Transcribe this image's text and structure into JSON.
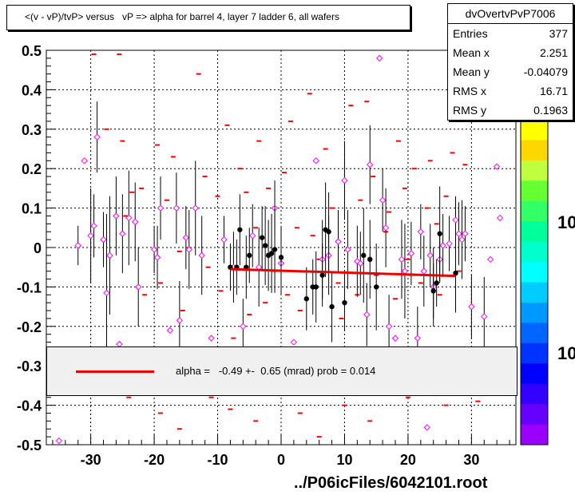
{
  "title": "<(v - vP)/tvP> versus   vP => alpha for barrel 4, layer 7 ladder 6, all wafers",
  "stats": {
    "name": "dvOvertvPvP7006",
    "rows": [
      {
        "label": "Entries",
        "value": "377"
      },
      {
        "label": "Mean x",
        "value": "2.251"
      },
      {
        "label": "Mean y",
        "value": "-0.04079"
      },
      {
        "label": "RMS x",
        "value": "16.71"
      },
      {
        "label": "RMS y",
        "value": "0.1963"
      }
    ]
  },
  "fit_label": "alpha =   -0.49 +-  0.65 (mrad) prob = 0.014",
  "footer": "../P06icFiles/6042101.root",
  "palette_labels": [
    "10",
    "10"
  ],
  "colors": {
    "fit": "#ee0000",
    "hist": "#ff0000",
    "profile": "#000000",
    "marker": "#ff00ff"
  },
  "chart_data": {
    "type": "scatter",
    "xlim": [
      -37,
      37
    ],
    "ylim": [
      -0.5,
      0.5
    ],
    "x_ticks": [
      -30,
      -20,
      -10,
      0,
      10,
      20,
      30
    ],
    "y_ticks": [
      0.5,
      0.4,
      0.3,
      0.2,
      0.1,
      0,
      -0.1,
      -0.2,
      -0.3,
      -0.4,
      -0.5
    ],
    "x_tick_labels": [
      "-30",
      "-20",
      "-10",
      "0",
      "10",
      "20",
      "30"
    ],
    "y_tick_labels": [
      "0.5",
      "0.4",
      "0.3",
      "0.2",
      "0.1",
      "0",
      "-0.1",
      "-0.2",
      "-0.3",
      "-0.4",
      "-0.5"
    ],
    "grid": true,
    "fit_line": {
      "x": [
        -8,
        27.5
      ],
      "y": [
        -0.055,
        -0.072
      ]
    },
    "profile_points": [
      {
        "x": -8,
        "y": -0.05,
        "err": 0.06
      },
      {
        "x": -7,
        "y": -0.05,
        "err": 0.07
      },
      {
        "x": -6.5,
        "y": 0.045,
        "err": 0.09
      },
      {
        "x": -5.5,
        "y": -0.05,
        "err": 0.08
      },
      {
        "x": -5,
        "y": -0.02,
        "err": 0.07
      },
      {
        "x": -3,
        "y": 0.025,
        "err": 0.08
      },
      {
        "x": -2.5,
        "y": 0.005,
        "err": 0.1
      },
      {
        "x": -2,
        "y": -0.02,
        "err": 0.09
      },
      {
        "x": -1.5,
        "y": -0.015,
        "err": 0.1
      },
      {
        "x": -1,
        "y": -0.005,
        "err": 0.11
      },
      {
        "x": 0,
        "y": -0.025,
        "err": 0.08
      },
      {
        "x": 4,
        "y": -0.13,
        "err": 0.08
      },
      {
        "x": 5,
        "y": -0.1,
        "err": 0.07
      },
      {
        "x": 5.5,
        "y": -0.1,
        "err": 0.09
      },
      {
        "x": 6.5,
        "y": -0.07,
        "err": 0.08
      },
      {
        "x": 7,
        "y": 0.045,
        "err": 0.12
      },
      {
        "x": 7.5,
        "y": 0.04,
        "err": 0.1
      },
      {
        "x": 8,
        "y": -0.15,
        "err": 0.09
      },
      {
        "x": 10,
        "y": -0.14,
        "err": 0.07
      },
      {
        "x": 13,
        "y": -0.02,
        "err": 0.12
      },
      {
        "x": 14,
        "y": -0.03,
        "err": 0.1
      },
      {
        "x": 15,
        "y": -0.1,
        "err": 0.11
      },
      {
        "x": 24,
        "y": -0.11,
        "err": 0.07
      },
      {
        "x": 24.5,
        "y": -0.09,
        "err": 0.06
      },
      {
        "x": 25,
        "y": 0.035,
        "err": 0.12
      },
      {
        "x": 27.5,
        "y": -0.065,
        "err": 0.1
      }
    ],
    "marker_points": [
      {
        "x": -35,
        "y": -0.49,
        "err": 0
      },
      {
        "x": -32,
        "y": 0.005,
        "err": 0.05
      },
      {
        "x": -31,
        "y": 0.22,
        "err": 0
      },
      {
        "x": -30,
        "y": 0.03,
        "err": 0.12
      },
      {
        "x": -29.5,
        "y": 0.055,
        "err": 0.08
      },
      {
        "x": -29,
        "y": 0.28,
        "err": 0.09
      },
      {
        "x": -28,
        "y": 0.02,
        "err": 0.07
      },
      {
        "x": -27.5,
        "y": -0.115,
        "err": 0.2
      },
      {
        "x": -27,
        "y": -0.02,
        "err": 0.15
      },
      {
        "x": -26,
        "y": 0.08,
        "err": 0.1
      },
      {
        "x": -25.5,
        "y": -0.245,
        "err": 0
      },
      {
        "x": -25,
        "y": 0.035,
        "err": 0.1
      },
      {
        "x": -24,
        "y": 0.075,
        "err": 0.12
      },
      {
        "x": -23,
        "y": 0.065,
        "err": 0.1
      },
      {
        "x": -22.5,
        "y": -0.1,
        "err": 0.1
      },
      {
        "x": -20,
        "y": -0.005,
        "err": 0.06
      },
      {
        "x": -19.5,
        "y": -0.025,
        "err": 0.08
      },
      {
        "x": -19,
        "y": 0.1,
        "err": 0.08
      },
      {
        "x": -17.5,
        "y": -0.21,
        "err": 0
      },
      {
        "x": -16.5,
        "y": 0.1,
        "err": 0.09
      },
      {
        "x": -16,
        "y": -0.185,
        "err": 0.1
      },
      {
        "x": -15,
        "y": 0.025,
        "err": 0.08
      },
      {
        "x": -14.5,
        "y": -0.005,
        "err": 0.1
      },
      {
        "x": -13.5,
        "y": 0.1,
        "err": 0.12
      },
      {
        "x": -12.5,
        "y": -0.02,
        "err": 0.1
      },
      {
        "x": -11,
        "y": -0.23,
        "err": 0
      },
      {
        "x": -9,
        "y": 0.02,
        "err": 0.06
      },
      {
        "x": -7.5,
        "y": -0.05,
        "err": 0.09
      },
      {
        "x": -6,
        "y": -0.2,
        "err": 0.07
      },
      {
        "x": -4.5,
        "y": 0.03,
        "err": 0.08
      },
      {
        "x": -3.5,
        "y": -0.05,
        "err": 0.1
      },
      {
        "x": -1,
        "y": 0.1,
        "err": 0.07
      },
      {
        "x": 0,
        "y": -0.04,
        "err": 0.08
      },
      {
        "x": 2,
        "y": -0.24,
        "err": 0
      },
      {
        "x": 5.5,
        "y": 0.22,
        "err": 0
      },
      {
        "x": 6.5,
        "y": -0.03,
        "err": 0.1
      },
      {
        "x": 7.5,
        "y": -0.02,
        "err": 0.1
      },
      {
        "x": 9,
        "y": 0.015,
        "err": 0.08
      },
      {
        "x": 10,
        "y": 0.17,
        "err": 0.1
      },
      {
        "x": 10.5,
        "y": -0.005,
        "err": 0.1
      },
      {
        "x": 12,
        "y": -0.035,
        "err": 0.09
      },
      {
        "x": 12.5,
        "y": -0.04,
        "err": 0.08
      },
      {
        "x": 13.5,
        "y": -0.17,
        "err": 0.08
      },
      {
        "x": 14,
        "y": 0.21,
        "err": 0.1
      },
      {
        "x": 15.5,
        "y": 0.48,
        "err": 0
      },
      {
        "x": 16,
        "y": 0.12,
        "err": 0.08
      },
      {
        "x": 16.5,
        "y": 0.05,
        "err": 0.1
      },
      {
        "x": 17,
        "y": -0.2,
        "err": 0.08
      },
      {
        "x": 18,
        "y": -0.23,
        "err": 0
      },
      {
        "x": 19,
        "y": -0.03,
        "err": 0.1
      },
      {
        "x": 19.5,
        "y": -0.06,
        "err": 0.12
      },
      {
        "x": 20.5,
        "y": -0.015,
        "err": 0.08
      },
      {
        "x": 21.5,
        "y": -0.23,
        "err": 0.08
      },
      {
        "x": 22,
        "y": 0.04,
        "err": 0.07
      },
      {
        "x": 22.5,
        "y": -0.06,
        "err": 0.09
      },
      {
        "x": 23,
        "y": -0.4561,
        "err": 0
      },
      {
        "x": 23.5,
        "y": -0.02,
        "err": 0.08
      },
      {
        "x": 24,
        "y": -0.1,
        "err": 0.1
      },
      {
        "x": 25,
        "y": -0.03,
        "err": 0.06
      },
      {
        "x": 25.5,
        "y": 0.005,
        "err": 0.08
      },
      {
        "x": 26.5,
        "y": 0.01,
        "err": 0.07
      },
      {
        "x": 27.5,
        "y": 0.07,
        "err": 0.06
      },
      {
        "x": 28,
        "y": 0.035,
        "err": 0.08
      },
      {
        "x": 28.5,
        "y": 0.02,
        "err": 0.1
      },
      {
        "x": 29,
        "y": 0.035,
        "err": 0.07
      },
      {
        "x": 30,
        "y": -0.15,
        "err": 0.08
      },
      {
        "x": 32,
        "y": -0.175,
        "err": 0.1
      },
      {
        "x": 33,
        "y": -0.03,
        "err": 0
      },
      {
        "x": 34,
        "y": 0.205,
        "err": 0
      },
      {
        "x": 34.5,
        "y": 0.075,
        "err": 0
      }
    ],
    "hist_bins": [
      {
        "x": -29.5,
        "y": 0.49
      },
      {
        "x": -27.5,
        "y": 0.3
      },
      {
        "x": -25.5,
        "y": 0.49
      },
      {
        "x": -25,
        "y": 0.27
      },
      {
        "x": -24.5,
        "y": 0.08
      },
      {
        "x": -23.5,
        "y": 0.14
      },
      {
        "x": -22,
        "y": 0.15
      },
      {
        "x": -21.5,
        "y": -0.12
      },
      {
        "x": -19.5,
        "y": 0.26
      },
      {
        "x": -19,
        "y": -0.09
      },
      {
        "x": -18,
        "y": 0.12
      },
      {
        "x": -17,
        "y": 0.23
      },
      {
        "x": -16,
        "y": -0.01
      },
      {
        "x": -15.5,
        "y": -0.16
      },
      {
        "x": -13,
        "y": 0.44
      },
      {
        "x": -12,
        "y": 0.18
      },
      {
        "x": -11.5,
        "y": -0.05
      },
      {
        "x": -10,
        "y": 0.13
      },
      {
        "x": -9.5,
        "y": -0.11
      },
      {
        "x": -8.5,
        "y": 0.31
      },
      {
        "x": -7.5,
        "y": -0.23
      },
      {
        "x": -6.5,
        "y": 0.2
      },
      {
        "x": -5.5,
        "y": 0.14
      },
      {
        "x": -5,
        "y": -0.17
      },
      {
        "x": -4,
        "y": 0.05
      },
      {
        "x": -3.5,
        "y": 0.27
      },
      {
        "x": -2.5,
        "y": -0.14
      },
      {
        "x": -2,
        "y": 0.15
      },
      {
        "x": -1,
        "y": -0.06
      },
      {
        "x": 0.5,
        "y": 0.19
      },
      {
        "x": 1,
        "y": -0.12
      },
      {
        "x": 1.5,
        "y": 0.32
      },
      {
        "x": 2.5,
        "y": 0.05
      },
      {
        "x": 3,
        "y": -0.16
      },
      {
        "x": 4.5,
        "y": 0.39
      },
      {
        "x": 5,
        "y": 0.03
      },
      {
        "x": 6,
        "y": -0.03
      },
      {
        "x": 7,
        "y": 0.25
      },
      {
        "x": 8,
        "y": 0.1
      },
      {
        "x": 9,
        "y": -0.09
      },
      {
        "x": 9.5,
        "y": -0.18
      },
      {
        "x": 11,
        "y": 0.36
      },
      {
        "x": 12,
        "y": -0.12
      },
      {
        "x": 12.5,
        "y": 0.12
      },
      {
        "x": 13.5,
        "y": 0.37
      },
      {
        "x": 14.5,
        "y": 0.18
      },
      {
        "x": 15,
        "y": -0.07
      },
      {
        "x": 16.5,
        "y": 0.04
      },
      {
        "x": 17,
        "y": 0.09
      },
      {
        "x": 18,
        "y": -0.13
      },
      {
        "x": 18.5,
        "y": 0.27
      },
      {
        "x": 19.5,
        "y": 0.15
      },
      {
        "x": 20,
        "y": -0.03
      },
      {
        "x": 21,
        "y": 0.2
      },
      {
        "x": 22,
        "y": -0.09
      },
      {
        "x": 23,
        "y": 0.1
      },
      {
        "x": 23.5,
        "y": 0.22
      },
      {
        "x": 24.5,
        "y": 0.06
      },
      {
        "x": 25,
        "y": -0.12
      },
      {
        "x": 26,
        "y": 0.13
      },
      {
        "x": 27,
        "y": 0.24
      },
      {
        "x": 28,
        "y": -0.06
      },
      {
        "x": 29,
        "y": 0.21
      },
      {
        "x": -24,
        "y": -0.38
      },
      {
        "x": -19,
        "y": -0.42
      },
      {
        "x": -16,
        "y": -0.46
      },
      {
        "x": -11,
        "y": -0.38
      },
      {
        "x": -8,
        "y": -0.41
      },
      {
        "x": -4,
        "y": -0.44
      },
      {
        "x": 3,
        "y": -0.42
      },
      {
        "x": 6,
        "y": -0.48
      },
      {
        "x": 10,
        "y": -0.4
      },
      {
        "x": 14,
        "y": -0.44
      },
      {
        "x": 20,
        "y": -0.38
      },
      {
        "x": 26,
        "y": -0.4
      },
      {
        "x": 31,
        "y": -0.39
      }
    ],
    "palette_colors": [
      "#ffff00",
      "#ffd700",
      "#c0ff40",
      "#66ff33",
      "#33ff66",
      "#00ff99",
      "#00ffcc",
      "#00ffff",
      "#00ccff",
      "#0099ff",
      "#0066ff",
      "#0033ff",
      "#0000ff",
      "#3300ff",
      "#6600ff",
      "#9900ff"
    ]
  }
}
